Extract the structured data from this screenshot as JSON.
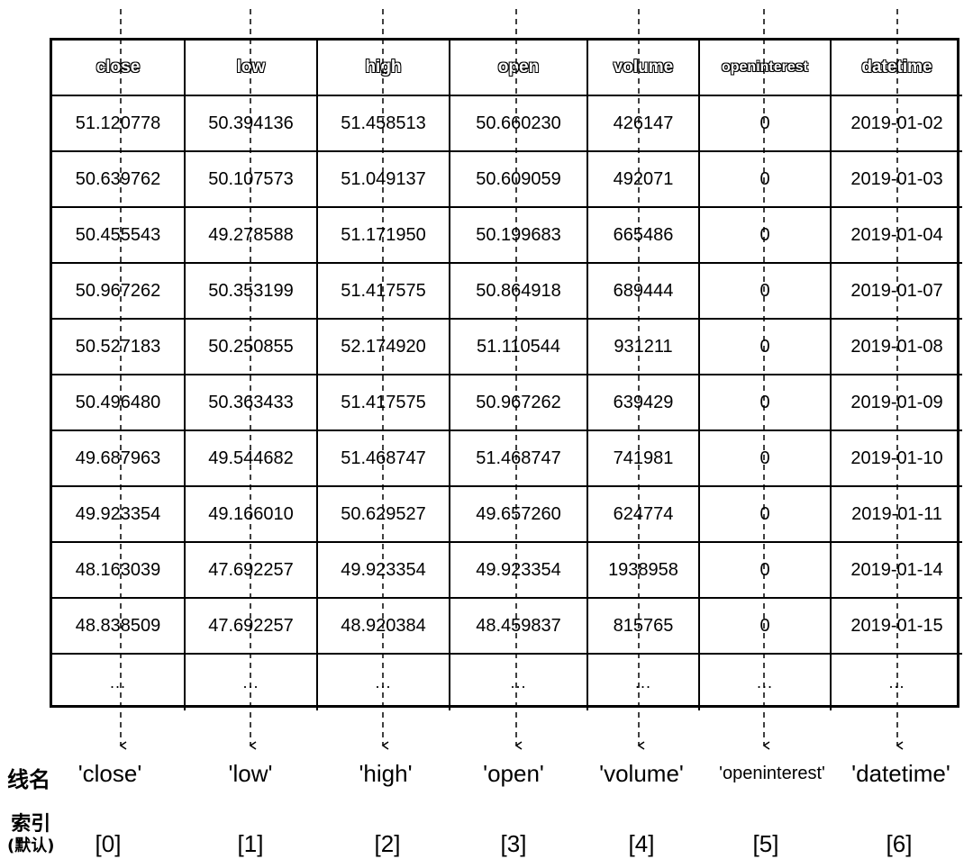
{
  "table": {
    "headers": [
      "close",
      "low",
      "high",
      "open",
      "volume",
      "openinterest",
      "datetime"
    ],
    "rows": [
      [
        "51.120778",
        "50.394136",
        "51.458513",
        "50.660230",
        "426147",
        "0",
        "2019-01-02"
      ],
      [
        "50.639762",
        "50.107573",
        "51.049137",
        "50.609059",
        "492071",
        "0",
        "2019-01-03"
      ],
      [
        "50.455543",
        "49.278588",
        "51.171950",
        "50.199683",
        "665486",
        "0",
        "2019-01-04"
      ],
      [
        "50.967262",
        "50.353199",
        "51.417575",
        "50.864918",
        "689444",
        "0",
        "2019-01-07"
      ],
      [
        "50.527183",
        "50.250855",
        "52.174920",
        "51.110544",
        "931211",
        "0",
        "2019-01-08"
      ],
      [
        "50.496480",
        "50.363433",
        "51.417575",
        "50.967262",
        "639429",
        "0",
        "2019-01-09"
      ],
      [
        "49.687963",
        "49.544682",
        "51.468747",
        "51.468747",
        "741981",
        "0",
        "2019-01-10"
      ],
      [
        "49.923354",
        "49.166010",
        "50.629527",
        "49.657260",
        "624774",
        "0",
        "2019-01-11"
      ],
      [
        "48.163039",
        "47.692257",
        "49.923354",
        "49.923354",
        "1938958",
        "0",
        "2019-01-14"
      ],
      [
        "48.838509",
        "47.692257",
        "48.920384",
        "48.459837",
        "815765",
        "0",
        "2019-01-15"
      ]
    ],
    "ellipsis": [
      "...",
      "...",
      "...",
      "...",
      "...",
      "...",
      "..."
    ]
  },
  "labels": {
    "name_row_label": "线名",
    "index_row_label": "索引",
    "index_row_sublabel": "(默认)",
    "line_names": [
      "'close'",
      "'low'",
      "'high'",
      "'open'",
      "'volume'",
      "'openinterest'",
      "'datetime'"
    ],
    "indices": [
      "[0]",
      "[1]",
      "[2]",
      "[3]",
      "[4]",
      "[5]",
      "[6]"
    ]
  }
}
